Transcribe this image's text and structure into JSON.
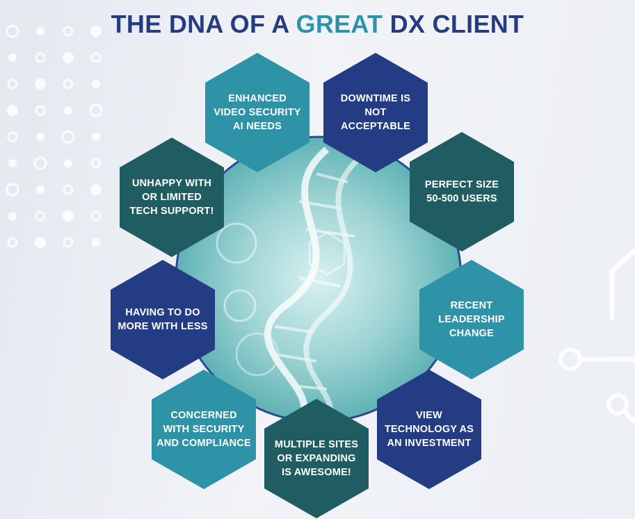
{
  "title": {
    "part1": "THE DNA OF A ",
    "accent": "GREAT",
    "part2": " DX CLIENT"
  },
  "colors": {
    "navy": "#233c83",
    "teal": "#2f93a8",
    "dark_teal": "#1f5d63",
    "title_blue": "#263c80",
    "title_accent": "#2d93ab"
  },
  "traits": [
    {
      "id": "enhanced-video-security",
      "label": "ENHANCED\nVIDEO SECURITY\nAI NEEDS",
      "color": "teal"
    },
    {
      "id": "downtime",
      "label": "DOWNTIME IS\nNOT\nACCEPTABLE",
      "color": "navy"
    },
    {
      "id": "unhappy-tech-support",
      "label": "UNHAPPY WITH\nOR LIMITED\nTECH SUPPORT!",
      "color": "dark_teal"
    },
    {
      "id": "perfect-size",
      "label": "PERFECT SIZE\n50-500 USERS",
      "color": "dark_teal"
    },
    {
      "id": "more-with-less",
      "label": "HAVING TO DO\nMORE WITH LESS",
      "color": "navy"
    },
    {
      "id": "leadership-change",
      "label": "RECENT\nLEADERSHIP\nCHANGE",
      "color": "teal"
    },
    {
      "id": "security-compliance",
      "label": "CONCERNED\nWITH SECURITY\nAND COMPLIANCE",
      "color": "teal"
    },
    {
      "id": "technology-investment",
      "label": "VIEW\nTECHNOLOGY AS\nAN INVESTMENT",
      "color": "navy"
    },
    {
      "id": "multiple-sites",
      "label": "MULTIPLE SITES\nOR EXPANDING\nIS AWESOME!",
      "color": "dark_teal"
    }
  ]
}
